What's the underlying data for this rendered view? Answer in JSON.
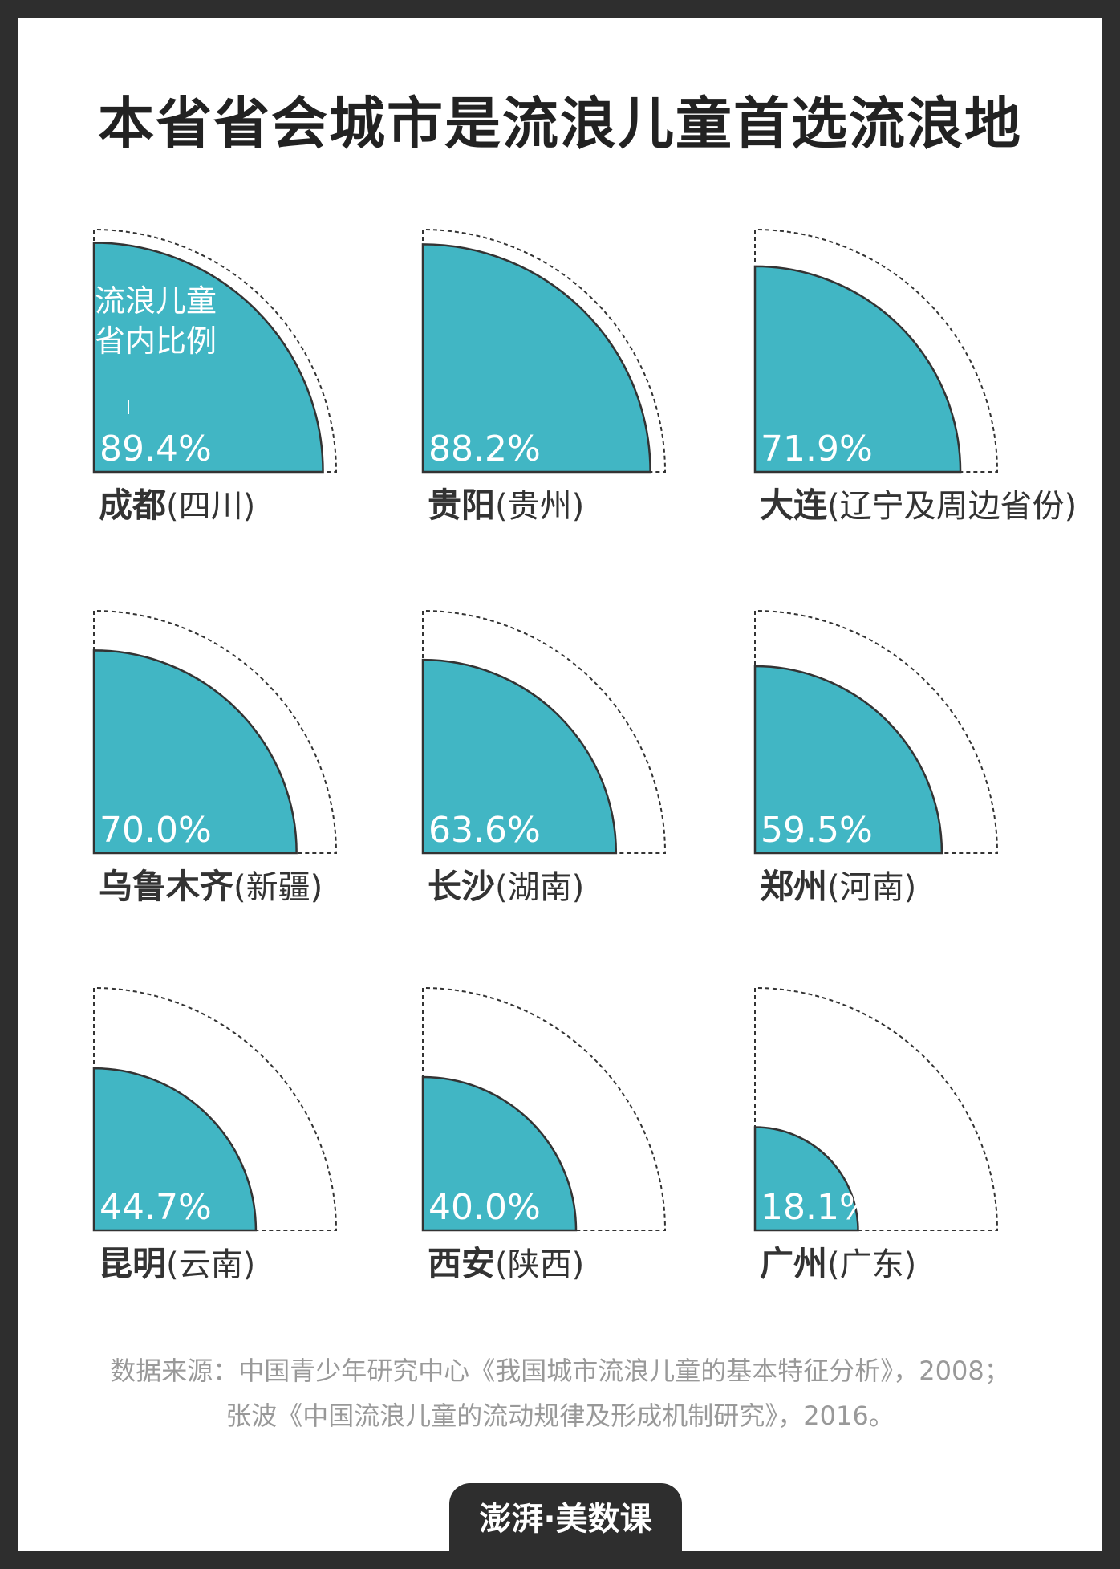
{
  "title": "本省省会城市是流浪儿童首选流浪地",
  "chart_data": {
    "type": "pie",
    "subtype": "quarter-circle area comparison (small multiples)",
    "title": "本省省会城市是流浪儿童首选流浪地",
    "annotation": [
      "流浪儿童",
      "省内比例"
    ],
    "fill_color": "#41b6c4",
    "items": [
      {
        "city": "成都",
        "province": "(四川)",
        "value": 89.4,
        "label": "89.4%"
      },
      {
        "city": "贵阳",
        "province": "(贵州)",
        "value": 88.2,
        "label": "88.2%"
      },
      {
        "city": "大连",
        "province": "(辽宁及周边省份)",
        "value": 71.9,
        "label": "71.9%"
      },
      {
        "city": "乌鲁木齐",
        "province": "(新疆)",
        "value": 70.0,
        "label": "70.0%"
      },
      {
        "city": "长沙",
        "province": "(湖南)",
        "value": 63.6,
        "label": "63.6%"
      },
      {
        "city": "郑州",
        "province": "(河南)",
        "value": 59.5,
        "label": "59.5%"
      },
      {
        "city": "昆明",
        "province": "(云南)",
        "value": 44.7,
        "label": "44.7%"
      },
      {
        "city": "西安",
        "province": "(陕西)",
        "value": 40.0,
        "label": "40.0%"
      },
      {
        "city": "广州",
        "province": "(广东)",
        "value": 18.1,
        "label": "18.1%"
      }
    ]
  },
  "source": {
    "line1": "数据来源：中国青少年研究中心《我国城市流浪儿童的基本特征分析》，2008；",
    "line2": "张波《中国流浪儿童的流动规律及形成机制研究》，2016。"
  },
  "logo": {
    "text": "澎湃·美数课"
  }
}
